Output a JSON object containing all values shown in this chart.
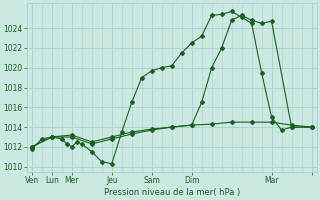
{
  "background_color": "#cce8e2",
  "grid_color": "#aad4cc",
  "line_color": "#1a6020",
  "title": "Pression niveau de la mer( hPa )",
  "ylim": [
    1009.5,
    1026.5
  ],
  "yticks": [
    1010,
    1012,
    1014,
    1016,
    1018,
    1020,
    1022,
    1024
  ],
  "xlim": [
    -0.5,
    28.5
  ],
  "xtick_major": [
    0,
    2,
    4,
    8,
    12,
    16,
    24,
    28
  ],
  "xtick_labels": [
    "Ven",
    "Lun",
    "Mer",
    "Jeu",
    "Sam",
    "Dim",
    "Mar",
    ""
  ],
  "minor_xticks": [
    0,
    1,
    2,
    3,
    4,
    5,
    6,
    7,
    8,
    9,
    10,
    11,
    12,
    13,
    14,
    15,
    16,
    17,
    18,
    19,
    20,
    21,
    22,
    23,
    24,
    25,
    26,
    27,
    28
  ],
  "s1_x": [
    0,
    1,
    2,
    3,
    3.5,
    4,
    4.5,
    5,
    6,
    7,
    8,
    9,
    10,
    11,
    12,
    13,
    14,
    15,
    16,
    17,
    18,
    19,
    20,
    21,
    22,
    23,
    24,
    25,
    26,
    28
  ],
  "s1_y": [
    1011.8,
    1012.8,
    1013.0,
    1012.8,
    1012.3,
    1012.0,
    1012.5,
    1012.3,
    1011.5,
    1010.5,
    1010.3,
    1013.5,
    1016.5,
    1019.0,
    1019.7,
    1020.0,
    1020.2,
    1021.5,
    1022.5,
    1023.2,
    1025.3,
    1025.4,
    1025.7,
    1025.1,
    1024.5,
    1019.5,
    1015.0,
    1013.7,
    1014.0,
    1014.0
  ],
  "s2_x": [
    0,
    2,
    4,
    6,
    8,
    10,
    12,
    14,
    16,
    17,
    18,
    19,
    20,
    21,
    22,
    23,
    24,
    26,
    28
  ],
  "s2_y": [
    1012.0,
    1013.0,
    1013.0,
    1012.3,
    1012.8,
    1013.3,
    1013.7,
    1014.0,
    1014.2,
    1016.5,
    1020.0,
    1022.0,
    1024.8,
    1025.3,
    1024.8,
    1024.5,
    1024.7,
    1014.0,
    1014.0
  ],
  "s3_x": [
    0,
    2,
    4,
    6,
    8,
    10,
    12,
    14,
    16,
    18,
    20,
    22,
    24,
    26,
    28
  ],
  "s3_y": [
    1012.0,
    1013.0,
    1013.2,
    1012.5,
    1013.0,
    1013.5,
    1013.8,
    1014.0,
    1014.2,
    1014.3,
    1014.5,
    1014.5,
    1014.5,
    1014.2,
    1014.0
  ]
}
